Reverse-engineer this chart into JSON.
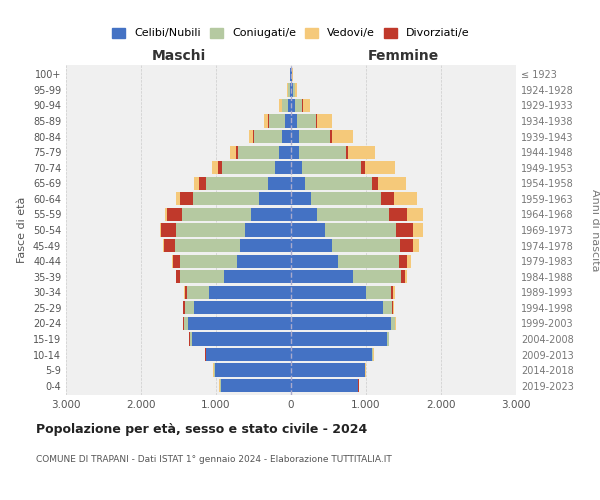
{
  "age_groups": [
    "0-4",
    "5-9",
    "10-14",
    "15-19",
    "20-24",
    "25-29",
    "30-34",
    "35-39",
    "40-44",
    "45-49",
    "50-54",
    "55-59",
    "60-64",
    "65-69",
    "70-74",
    "75-79",
    "80-84",
    "85-89",
    "90-94",
    "95-99",
    "100+"
  ],
  "birth_years": [
    "2019-2023",
    "2014-2018",
    "2009-2013",
    "2004-2008",
    "1999-2003",
    "1994-1998",
    "1989-1993",
    "1984-1988",
    "1979-1983",
    "1974-1978",
    "1969-1973",
    "1964-1968",
    "1959-1963",
    "1954-1958",
    "1949-1953",
    "1944-1948",
    "1939-1943",
    "1934-1938",
    "1929-1933",
    "1924-1928",
    "≤ 1923"
  ],
  "males": {
    "celibi": [
      940,
      1020,
      1130,
      1320,
      1380,
      1300,
      1100,
      900,
      720,
      680,
      620,
      530,
      430,
      310,
      220,
      160,
      120,
      80,
      40,
      20,
      10
    ],
    "coniugati": [
      5,
      5,
      10,
      30,
      50,
      120,
      290,
      580,
      760,
      870,
      910,
      920,
      880,
      820,
      700,
      550,
      370,
      220,
      80,
      20,
      5
    ],
    "vedovi": [
      5,
      5,
      5,
      5,
      5,
      5,
      5,
      5,
      5,
      10,
      15,
      30,
      50,
      60,
      70,
      70,
      60,
      50,
      30,
      10,
      2
    ],
    "divorziati": [
      5,
      5,
      5,
      5,
      10,
      15,
      30,
      50,
      100,
      150,
      200,
      200,
      170,
      100,
      60,
      30,
      15,
      10,
      5,
      2,
      1
    ]
  },
  "females": {
    "nubili": [
      890,
      980,
      1080,
      1280,
      1330,
      1220,
      1000,
      820,
      620,
      540,
      450,
      340,
      260,
      190,
      150,
      110,
      100,
      80,
      50,
      30,
      10
    ],
    "coniugate": [
      5,
      5,
      10,
      20,
      50,
      120,
      330,
      640,
      820,
      910,
      950,
      960,
      940,
      890,
      780,
      620,
      420,
      250,
      100,
      20,
      5
    ],
    "vedove": [
      5,
      5,
      5,
      5,
      10,
      15,
      20,
      30,
      50,
      80,
      130,
      210,
      310,
      370,
      390,
      360,
      290,
      200,
      100,
      30,
      5
    ],
    "divorziate": [
      5,
      5,
      5,
      5,
      10,
      15,
      30,
      60,
      110,
      170,
      230,
      250,
      170,
      80,
      60,
      30,
      20,
      10,
      5,
      2,
      1
    ]
  },
  "colors": {
    "celibi_nubili": "#4472c4",
    "coniugati_e": "#b5c9a1",
    "vedovi_e": "#f5c97a",
    "divorziati_e": "#c0392b"
  },
  "title": "Popolazione per età, sesso e stato civile - 2024",
  "subtitle": "COMUNE DI TRAPANI - Dati ISTAT 1° gennaio 2024 - Elaborazione TUTTITALIA.IT",
  "xlabel_left": "Maschi",
  "xlabel_right": "Femmine",
  "ylabel_left": "Fasce di età",
  "ylabel_right": "Anni di nascita",
  "legend_labels": [
    "Celibi/Nubili",
    "Coniugati/e",
    "Vedovi/e",
    "Divorziati/e"
  ],
  "xlim": 3000,
  "background_color": "#ffffff",
  "plot_bg": "#f0f0f0",
  "grid_color": "#cccccc"
}
